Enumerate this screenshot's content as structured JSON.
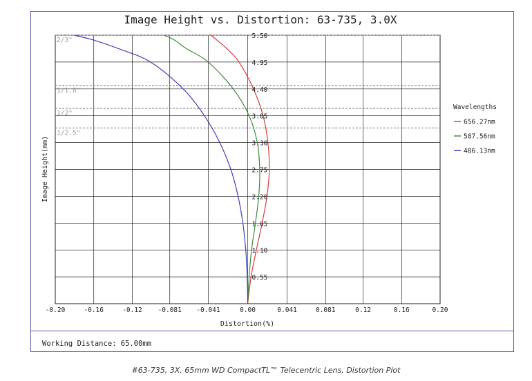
{
  "footer": {
    "working_distance": "Working Distance: 65.00mm"
  },
  "caption": "#63-735, 3X, 65mm WD CompactTL™ Telecentric Lens, Distortion Plot",
  "legend": {
    "title": "Wavelengths",
    "items": [
      {
        "label": "656.27nm",
        "color": "#d83a3a"
      },
      {
        "label": "587.56nm",
        "color": "#3c8c3c"
      },
      {
        "label": "486.13nm",
        "color": "#3e3eb8"
      }
    ]
  },
  "chart_data": {
    "type": "line",
    "title": "Image Height vs. Distortion: 63-735, 3.0X",
    "xlabel": "Distortion(%)",
    "ylabel": "Image Height(mm)",
    "xlim": [
      -0.2,
      0.2
    ],
    "ylim": [
      0,
      5.5
    ],
    "x_ticks": [
      {
        "value": -0.2,
        "label": "-0.20"
      },
      {
        "value": -0.16,
        "label": "-0.16"
      },
      {
        "value": -0.12,
        "label": "-0.12"
      },
      {
        "value": -0.081,
        "label": "-0.081"
      },
      {
        "value": -0.041,
        "label": "-0.041"
      },
      {
        "value": 0.0,
        "label": "0.00"
      },
      {
        "value": 0.041,
        "label": "0.041"
      },
      {
        "value": 0.081,
        "label": "0.081"
      },
      {
        "value": 0.12,
        "label": "0.12"
      },
      {
        "value": 0.16,
        "label": "0.16"
      },
      {
        "value": 0.2,
        "label": "0.20"
      }
    ],
    "y_ticks": [
      {
        "value": 0.55,
        "label": "0.55"
      },
      {
        "value": 1.1,
        "label": "1.10"
      },
      {
        "value": 1.65,
        "label": "1.65"
      },
      {
        "value": 2.2,
        "label": "2.20"
      },
      {
        "value": 2.75,
        "label": "2.75"
      },
      {
        "value": 3.3,
        "label": "3.30"
      },
      {
        "value": 3.85,
        "label": "3.85"
      },
      {
        "value": 4.4,
        "label": "4.40"
      },
      {
        "value": 4.95,
        "label": "4.95"
      },
      {
        "value": 5.5,
        "label": "5.50"
      }
    ],
    "sensor_lines": [
      {
        "label": "2/3\"",
        "y": 5.5
      },
      {
        "label": "1/1.8\"",
        "y": 4.47
      },
      {
        "label": "1/2\"",
        "y": 4.0
      },
      {
        "label": "1/2.5\"",
        "y": 3.6
      }
    ],
    "grid": true,
    "series": [
      {
        "name": "656.27nm",
        "color": "#d83a3a",
        "x": [
          0.0,
          0.0035,
          0.009,
          0.015,
          0.02,
          0.0225,
          0.021,
          0.016,
          0.006,
          -0.009,
          -0.022,
          -0.032,
          -0.038
        ],
        "y": [
          0.0,
          0.55,
          1.1,
          1.65,
          2.2,
          2.75,
          3.3,
          3.85,
          4.4,
          4.95,
          5.23,
          5.4,
          5.5
        ]
      },
      {
        "name": "587.56nm",
        "color": "#3c8c3c",
        "x": [
          0.0,
          0.0015,
          0.004,
          0.008,
          0.0115,
          0.0125,
          0.01,
          0.0015,
          -0.015,
          -0.041,
          -0.064,
          -0.076,
          -0.087
        ],
        "y": [
          0.0,
          0.55,
          1.1,
          1.65,
          2.2,
          2.75,
          3.3,
          3.85,
          4.4,
          4.95,
          5.23,
          5.4,
          5.5
        ]
      },
      {
        "name": "486.13nm",
        "color": "#3e3eb8",
        "x": [
          0.0,
          -0.0005,
          -0.002,
          -0.005,
          -0.01,
          -0.0175,
          -0.029,
          -0.045,
          -0.067,
          -0.101,
          -0.135,
          -0.16,
          -0.18
        ],
        "y": [
          0.0,
          0.55,
          1.1,
          1.65,
          2.2,
          2.75,
          3.3,
          3.85,
          4.4,
          4.95,
          5.23,
          5.4,
          5.5
        ]
      }
    ]
  }
}
